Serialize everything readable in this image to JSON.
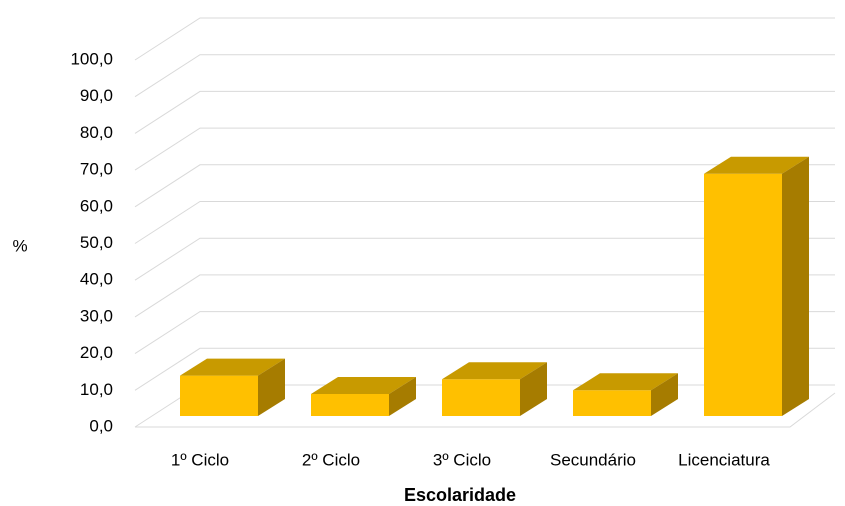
{
  "chart_data": {
    "type": "bar3d",
    "x_label": "Escolaridade",
    "y_label": "%",
    "categories": [
      "1º Ciclo",
      "2º Ciclo",
      "3º Ciclo",
      "Secundário",
      "Licenciatura"
    ],
    "values": [
      11,
      6,
      10,
      7,
      66
    ],
    "color": "#ffc000",
    "ylim": [
      0,
      100
    ],
    "yticks": [
      {
        "value": 0,
        "label": "0,0"
      },
      {
        "value": 10,
        "label": "10,0"
      },
      {
        "value": 20,
        "label": "20,0"
      },
      {
        "value": 30,
        "label": "30,0"
      },
      {
        "value": 40,
        "label": "40,0"
      },
      {
        "value": 50,
        "label": "50,0"
      },
      {
        "value": 60,
        "label": "60,0"
      },
      {
        "value": 70,
        "label": "70,0"
      },
      {
        "value": 80,
        "label": "80,0"
      },
      {
        "value": 90,
        "label": "90,0"
      },
      {
        "value": 100,
        "label": "100,0"
      }
    ],
    "grid": true
  }
}
